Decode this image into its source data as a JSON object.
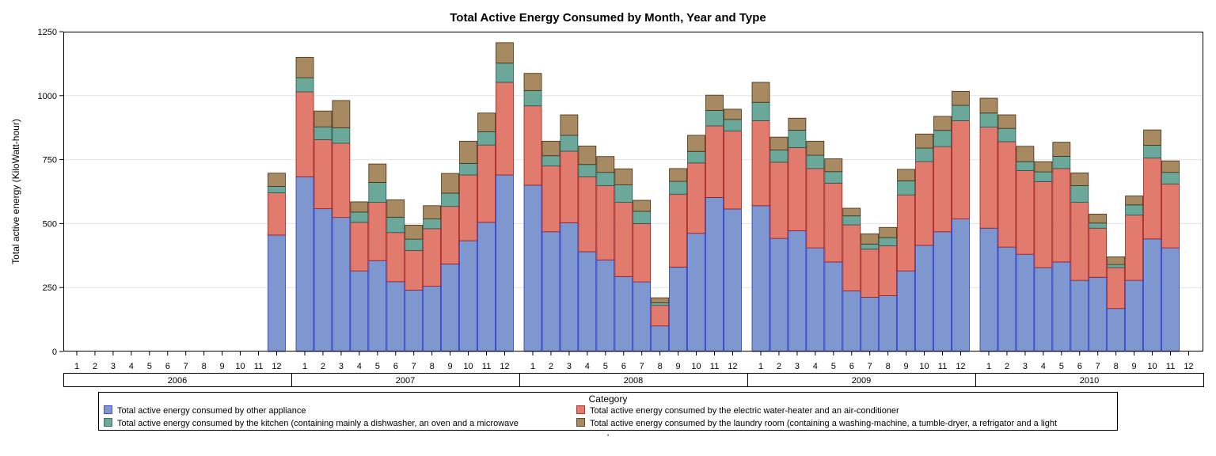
{
  "chart_data": {
    "type": "bar",
    "stacked": true,
    "title": "Total Active Energy Consumed by Month, Year and Type",
    "ylabel": "Total active energy (KiloWatt-hour)",
    "xlabel": "",
    "ylim": [
      0,
      1250
    ],
    "yticks": [
      0,
      250,
      500,
      750,
      1000,
      1250
    ],
    "grid": true,
    "legend_title": "Category",
    "legend_position": "bottom",
    "footer_mark": "'",
    "years": [
      "2006",
      "2007",
      "2008",
      "2009",
      "2010"
    ],
    "months": [
      "1",
      "2",
      "3",
      "4",
      "5",
      "6",
      "7",
      "8",
      "9",
      "10",
      "11",
      "12"
    ],
    "series": [
      {
        "name": "Total active energy consumed by other appliance",
        "color": "#7f97cf",
        "edge": "#2233cc",
        "values": [
          [
            null,
            null,
            null,
            null,
            null,
            null,
            null,
            null,
            null,
            null,
            null,
            455
          ],
          [
            683,
            558,
            524,
            315,
            355,
            273,
            240,
            255,
            342,
            433,
            505,
            690
          ],
          [
            650,
            468,
            503,
            390,
            358,
            293,
            272,
            100,
            330,
            462,
            602,
            557
          ],
          [
            570,
            442,
            472,
            405,
            350,
            237,
            212,
            218,
            315,
            415,
            468,
            518
          ],
          [
            482,
            408,
            380,
            328,
            350,
            278,
            290,
            168,
            278,
            440,
            405,
            null
          ]
        ]
      },
      {
        "name": "Total active energy consumed by the electric water-heater and an air-conditioner",
        "color": "#e07b6e",
        "edge": "#a01818",
        "values": [
          [
            null,
            null,
            null,
            null,
            null,
            null,
            null,
            null,
            null,
            null,
            null,
            165
          ],
          [
            332,
            270,
            290,
            190,
            228,
            192,
            155,
            225,
            225,
            257,
            302,
            362
          ],
          [
            310,
            257,
            280,
            293,
            290,
            290,
            228,
            80,
            285,
            275,
            280,
            305
          ],
          [
            332,
            298,
            325,
            310,
            308,
            258,
            188,
            195,
            297,
            327,
            333,
            384
          ],
          [
            395,
            412,
            327,
            336,
            365,
            305,
            192,
            160,
            255,
            316,
            250,
            null
          ]
        ]
      },
      {
        "name": "Total active energy consumed by the kitchen (containing mainly a dishwasher, an oven and a microwave",
        "color": "#6ba89a",
        "edge": "#205850",
        "values": [
          [
            null,
            null,
            null,
            null,
            null,
            null,
            null,
            null,
            null,
            null,
            null,
            25
          ],
          [
            55,
            50,
            60,
            40,
            78,
            60,
            44,
            38,
            52,
            45,
            52,
            75
          ],
          [
            60,
            40,
            62,
            48,
            52,
            68,
            48,
            10,
            50,
            45,
            60,
            45
          ],
          [
            72,
            48,
            68,
            52,
            45,
            35,
            20,
            32,
            55,
            53,
            63,
            60
          ],
          [
            55,
            52,
            35,
            38,
            48,
            65,
            20,
            12,
            40,
            50,
            45,
            null
          ]
        ]
      },
      {
        "name": "Total active energy consumed by the laundry room (containing a washing-machine, a tumble-dryer, a refrigator and a light",
        "color": "#a88a62",
        "edge": "#402c10",
        "values": [
          [
            null,
            null,
            null,
            null,
            null,
            null,
            null,
            null,
            null,
            null,
            null,
            52
          ],
          [
            80,
            62,
            107,
            40,
            72,
            68,
            55,
            52,
            77,
            87,
            73,
            80
          ],
          [
            67,
            57,
            80,
            72,
            62,
            63,
            43,
            20,
            50,
            63,
            60,
            40
          ],
          [
            78,
            50,
            47,
            55,
            50,
            30,
            40,
            40,
            45,
            55,
            55,
            55
          ],
          [
            58,
            53,
            60,
            40,
            55,
            50,
            35,
            30,
            35,
            60,
            45,
            null
          ]
        ]
      }
    ]
  }
}
